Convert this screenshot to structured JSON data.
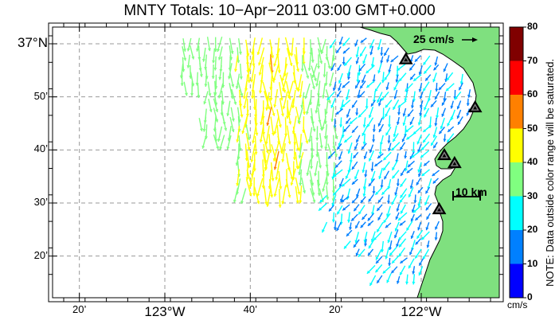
{
  "title": "MNTY Totals: 10−Apr−2011 03:00 GMT+0.000",
  "lat_ticks": [
    {
      "label": "37°N",
      "lat": 37.0,
      "major": true
    },
    {
      "label": "50’",
      "lat": 36.8333,
      "major": false
    },
    {
      "label": "40’",
      "lat": 36.6667,
      "major": false
    },
    {
      "label": "30’",
      "lat": 36.5,
      "major": false
    },
    {
      "label": "20’",
      "lat": 36.3333,
      "major": false
    }
  ],
  "lon_ticks": [
    {
      "label": "20’",
      "lon": -123.3333,
      "major": false
    },
    {
      "label": "123°W",
      "lon": -123.0,
      "major": true
    },
    {
      "label": "40’",
      "lon": -122.6667,
      "major": false
    },
    {
      "label": "20’",
      "lon": -122.3333,
      "major": false
    },
    {
      "label": "122°W",
      "lon": -122.0,
      "major": true
    }
  ],
  "colorbar": {
    "ticks": [
      "0",
      "10",
      "20",
      "30",
      "40",
      "50",
      "60",
      "70",
      "80"
    ],
    "unit": "cm/s",
    "note": "NOTE: Data outside color range will be saturated.",
    "colors": [
      "#0000ff",
      "#0080ff",
      "#00ffff",
      "#80ff80",
      "#ffff00",
      "#ff8000",
      "#ff0000",
      "#800000"
    ]
  },
  "scale_arrow_label": "25 cm/s",
  "km_scale_label": "10 km",
  "land_color": "#7fe07f",
  "sites": [
    {
      "lat": 36.9508,
      "lon": -122.06
    },
    {
      "lat": 36.8,
      "lon": -121.79
    },
    {
      "lat": 36.65,
      "lon": -121.91
    },
    {
      "lat": 36.625,
      "lon": -121.87
    },
    {
      "lat": 36.48,
      "lon": -121.93
    }
  ]
}
